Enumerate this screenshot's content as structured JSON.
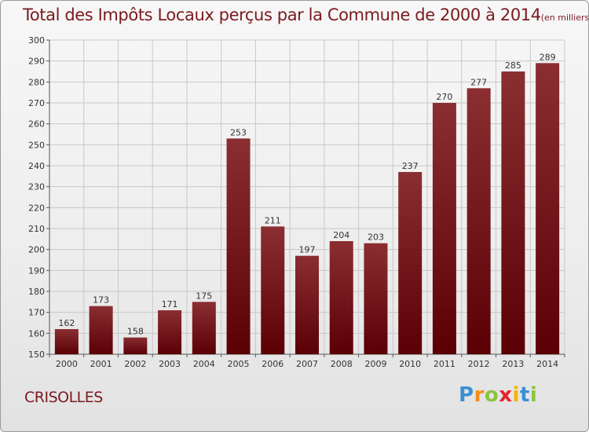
{
  "header": {
    "title": "Total des Impôts Locaux perçus par la Commune de 2000 à 2014",
    "subtitle": "(en milliers d'€)"
  },
  "commune": "CRISOLLES",
  "brand": {
    "letters": [
      "P",
      "r",
      "o",
      "x",
      "i",
      "t",
      "i"
    ],
    "colors": [
      "#3b8fd4",
      "#f28c1c",
      "#8ac43f",
      "#e8212a",
      "#f5b400",
      "#3b8fd4",
      "#8ac43f"
    ]
  },
  "colors": {
    "bar_top": "#8b2e32",
    "bar_bottom": "#5a0005",
    "grid": "#c8c8c8"
  },
  "chart_data": {
    "type": "bar",
    "title": "Total des Impôts Locaux perçus par la Commune de 2000 à 2014",
    "subtitle": "(en milliers d'€)",
    "xlabel": "",
    "ylabel": "",
    "categories": [
      "2000",
      "2001",
      "2002",
      "2003",
      "2004",
      "2005",
      "2006",
      "2007",
      "2008",
      "2009",
      "2010",
      "2011",
      "2012",
      "2013",
      "2014"
    ],
    "values": [
      162,
      173,
      158,
      171,
      175,
      253,
      211,
      197,
      204,
      203,
      237,
      270,
      277,
      285,
      289
    ],
    "ylim": [
      150,
      300
    ],
    "yticks": [
      150,
      160,
      170,
      180,
      190,
      200,
      210,
      220,
      230,
      240,
      250,
      260,
      270,
      280,
      290,
      300
    ],
    "grid": true
  }
}
